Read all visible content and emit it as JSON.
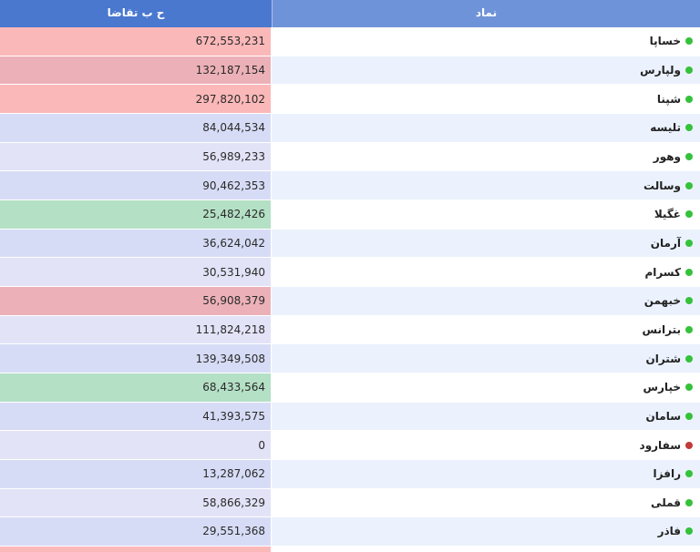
{
  "header": {
    "value_col": "ح ب تقاضا",
    "symbol_col": "نماد"
  },
  "rows": [
    {
      "symbol": "خساپا",
      "value": "672,553,231",
      "bg": "#fbb8b9",
      "status": "#34c23a"
    },
    {
      "symbol": "ولپارس",
      "value": "132,187,154",
      "bg": "#ecb1b8",
      "status": "#34c23a"
    },
    {
      "symbol": "شپنا",
      "value": "297,820,102",
      "bg": "#fbb8b9",
      "status": "#34c23a"
    },
    {
      "symbol": "تلیسه",
      "value": "84,044,534",
      "bg": "#d7dcf6",
      "status": "#34c23a"
    },
    {
      "symbol": "وهور",
      "value": "56,989,233",
      "bg": "#e3e3f8",
      "status": "#34c23a"
    },
    {
      "symbol": "وسالت",
      "value": "90,462,353",
      "bg": "#d7dcf6",
      "status": "#34c23a"
    },
    {
      "symbol": "غگیلا",
      "value": "25,482,426",
      "bg": "#b4e0c5",
      "status": "#34c23a"
    },
    {
      "symbol": "آرمان",
      "value": "36,624,042",
      "bg": "#d7dcf6",
      "status": "#34c23a"
    },
    {
      "symbol": "کسرام",
      "value": "30,531,940",
      "bg": "#e3e3f8",
      "status": "#34c23a"
    },
    {
      "symbol": "خبهمن",
      "value": "56,908,379",
      "bg": "#ecb1b8",
      "status": "#34c23a"
    },
    {
      "symbol": "بترانس",
      "value": "111,824,218",
      "bg": "#e3e3f8",
      "status": "#34c23a"
    },
    {
      "symbol": "شتران",
      "value": "139,349,508",
      "bg": "#d7dcf6",
      "status": "#34c23a"
    },
    {
      "symbol": "خپارس",
      "value": "68,433,564",
      "bg": "#b4e0c5",
      "status": "#34c23a"
    },
    {
      "symbol": "سامان",
      "value": "41,393,575",
      "bg": "#d7dcf6",
      "status": "#34c23a"
    },
    {
      "symbol": "سفارود",
      "value": "0",
      "bg": "#e3e3f8",
      "status": "#c23a3a"
    },
    {
      "symbol": "رافزا",
      "value": "13,287,062",
      "bg": "#d7dcf6",
      "status": "#34c23a"
    },
    {
      "symbol": "قملی",
      "value": "58,866,329",
      "bg": "#e3e3f8",
      "status": "#34c23a"
    },
    {
      "symbol": "فاذر",
      "value": "29,551,368",
      "bg": "#d7dcf6",
      "status": "#34c23a"
    },
    {
      "symbol": "",
      "value": "",
      "bg": "#fbb8b9",
      "status": "#ffffff"
    }
  ]
}
